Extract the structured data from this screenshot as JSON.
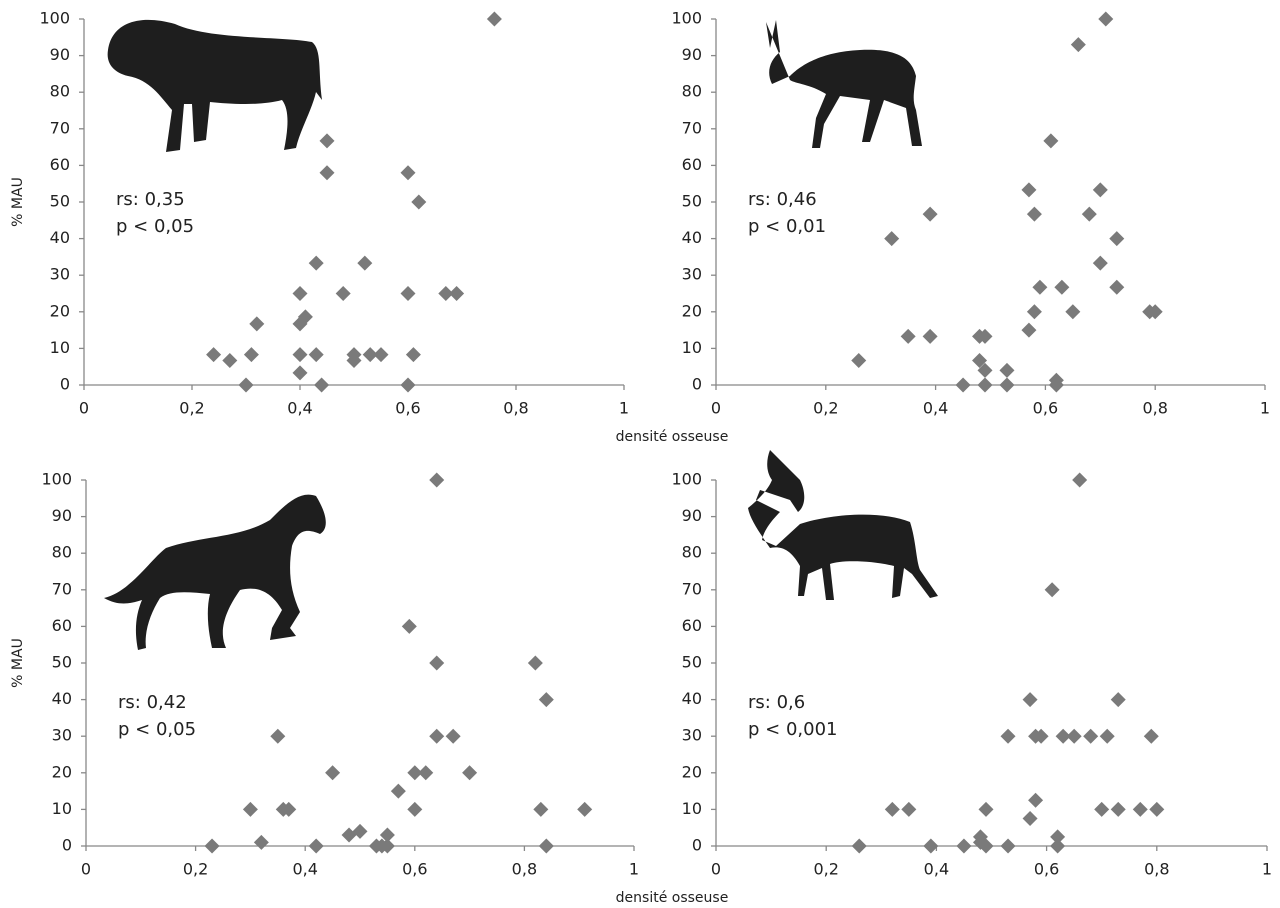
{
  "chart_data": [
    {
      "type": "scatter",
      "color": "#7a7a7a",
      "ylabel": "% MAU",
      "xlabel": "densité osseuse",
      "annotations": [
        "rs: 0,35",
        "p < 0,05"
      ],
      "xlim": [
        0,
        1
      ],
      "ylim": [
        0,
        100
      ],
      "xticks": [
        0,
        {
          "value": 0.2,
          "label": "0,2"
        },
        {
          "value": 0.4,
          "label": "0,4"
        },
        {
          "value": 0.6,
          "label": "0,6"
        },
        {
          "value": 0.8,
          "label": "0,8"
        },
        1
      ],
      "yticks": [
        0,
        10,
        20,
        30,
        40,
        50,
        60,
        70,
        80,
        90,
        100
      ],
      "x": [
        0.76,
        0.45,
        0.45,
        0.6,
        0.62,
        0.43,
        0.52,
        0.4,
        0.48,
        0.6,
        0.67,
        0.69,
        0.41,
        0.4,
        0.32,
        0.24,
        0.27,
        0.31,
        0.4,
        0.43,
        0.5,
        0.5,
        0.53,
        0.55,
        0.61,
        0.4,
        0.3,
        0.44,
        0.6
      ],
      "values": [
        100,
        66.7,
        58,
        58,
        50,
        33.3,
        33.3,
        25,
        25,
        25,
        25,
        25,
        18.6,
        16.7,
        16.7,
        8.3,
        6.7,
        8.3,
        8.3,
        8.3,
        8.3,
        6.7,
        8.3,
        8.3,
        8.3,
        3.3,
        0,
        0,
        0
      ]
    },
    {
      "type": "scatter",
      "color": "#7a7a7a",
      "annotations": [
        "rs: 0,46",
        "p < 0,01"
      ],
      "xlim": [
        0,
        1
      ],
      "ylim": [
        0,
        100
      ],
      "xticks": [
        0,
        {
          "value": 0.2,
          "label": "0,2"
        },
        {
          "value": 0.4,
          "label": "0,4"
        },
        {
          "value": 0.6,
          "label": "0,6"
        },
        {
          "value": 0.8,
          "label": "0,8"
        },
        1
      ],
      "yticks": [
        0,
        10,
        20,
        30,
        40,
        50,
        60,
        70,
        80,
        90,
        100
      ],
      "x": [
        0.71,
        0.66,
        0.61,
        0.57,
        0.7,
        0.32,
        0.39,
        0.58,
        0.68,
        0.73,
        0.7,
        0.59,
        0.63,
        0.73,
        0.58,
        0.65,
        0.79,
        0.8,
        0.57,
        0.35,
        0.39,
        0.48,
        0.49,
        0.26,
        0.48,
        0.49,
        0.53,
        0.62,
        0.62,
        0.45,
        0.49,
        0.53
      ],
      "values": [
        100,
        93,
        66.7,
        53.3,
        53.3,
        40,
        46.7,
        46.7,
        46.7,
        40,
        33.3,
        26.7,
        26.7,
        26.7,
        20,
        20,
        20,
        20,
        15,
        13.3,
        13.3,
        13.3,
        13.3,
        6.7,
        6.7,
        4,
        4,
        1.3,
        0,
        0,
        0,
        0
      ]
    },
    {
      "type": "scatter",
      "color": "#7a7a7a",
      "ylabel": "% MAU",
      "xlabel": "densité osseuse",
      "annotations": [
        "rs: 0,42",
        "p < 0,05"
      ],
      "xlim": [
        0,
        1
      ],
      "ylim": [
        0,
        100
      ],
      "xticks": [
        0,
        {
          "value": 0.2,
          "label": "0,2"
        },
        {
          "value": 0.4,
          "label": "0,4"
        },
        {
          "value": 0.6,
          "label": "0,6"
        },
        {
          "value": 0.8,
          "label": "0,8"
        },
        1
      ],
      "yticks": [
        0,
        10,
        20,
        30,
        40,
        50,
        60,
        70,
        80,
        90,
        100
      ],
      "x": [
        0.64,
        0.59,
        0.64,
        0.82,
        0.84,
        0.35,
        0.64,
        0.67,
        0.45,
        0.6,
        0.62,
        0.7,
        0.57,
        0.3,
        0.36,
        0.37,
        0.6,
        0.83,
        0.91,
        0.32,
        0.48,
        0.5,
        0.55,
        0.23,
        0.42,
        0.53,
        0.54,
        0.55,
        0.84
      ],
      "values": [
        100,
        60,
        50,
        50,
        40,
        30,
        30,
        30,
        20,
        20,
        20,
        20,
        15,
        10,
        10,
        10,
        10,
        10,
        10,
        1,
        3,
        4,
        3,
        0,
        0,
        0,
        0,
        0,
        0
      ]
    },
    {
      "type": "scatter",
      "color": "#7a7a7a",
      "annotations": [
        "rs: 0,6",
        "p < 0,001"
      ],
      "xlim": [
        0,
        1
      ],
      "ylim": [
        0,
        100
      ],
      "xticks": [
        0,
        {
          "value": 0.2,
          "label": "0,2"
        },
        {
          "value": 0.4,
          "label": "0,4"
        },
        {
          "value": 0.6,
          "label": "0,6"
        },
        {
          "value": 0.8,
          "label": "0,8"
        },
        1
      ],
      "yticks": [
        0,
        10,
        20,
        30,
        40,
        50,
        60,
        70,
        80,
        90,
        100
      ],
      "x": [
        0.66,
        0.61,
        0.57,
        0.73,
        0.53,
        0.58,
        0.59,
        0.63,
        0.65,
        0.68,
        0.71,
        0.79,
        0.58,
        0.57,
        0.32,
        0.35,
        0.49,
        0.7,
        0.73,
        0.77,
        0.8,
        0.62,
        0.62,
        0.26,
        0.39,
        0.45,
        0.48,
        0.48,
        0.49,
        0.53
      ],
      "values": [
        100,
        70,
        40,
        40,
        30,
        30,
        30,
        30,
        30,
        30,
        30,
        30,
        12.5,
        7.5,
        10,
        10,
        10,
        10,
        10,
        10,
        10,
        2.5,
        0,
        0,
        0,
        0,
        2.5,
        1,
        0,
        0
      ]
    }
  ]
}
